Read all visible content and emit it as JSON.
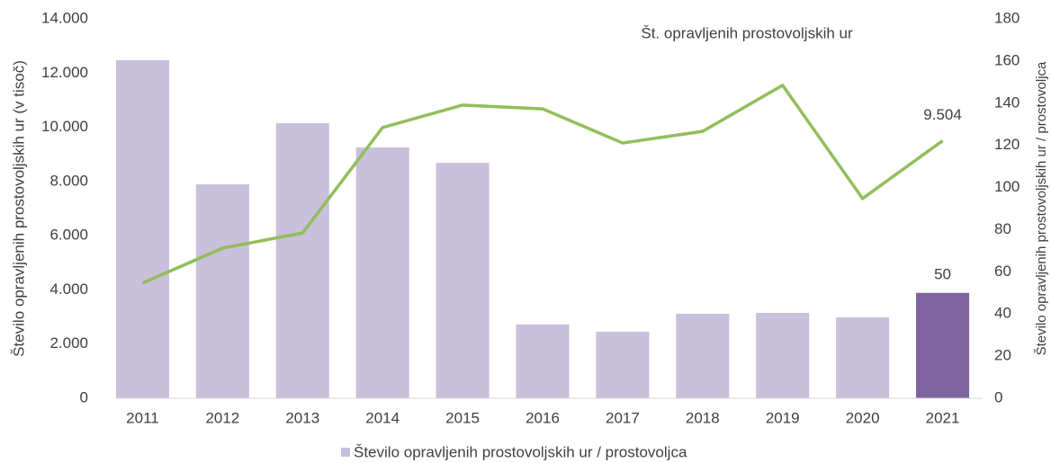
{
  "chart_data": {
    "type": "bar_line",
    "y_label": "Število opravljenih prostovoljskih ur (v tisoč)",
    "y2_label": "Število opravljenih prostovoljskih ur / prostovoljca",
    "categories": [
      "2011",
      "2012",
      "2013",
      "2014",
      "2015",
      "2016",
      "2017",
      "2018",
      "2019",
      "2020",
      "2021"
    ],
    "series": [
      {
        "name": "Število opravljenih prostovoljskih ur / prostovoljca",
        "type": "bar",
        "axis": "y2",
        "color": "#c9c0dc",
        "colors": [
          "#c9c0dc",
          "#c9c0dc",
          "#c9c0dc",
          "#c9c0dc",
          "#c9c0dc",
          "#c9c0dc",
          "#c9c0dc",
          "#c9c0dc",
          "#c9c0dc",
          "#c9c0dc",
          "#7f63a0"
        ],
        "values": [
          160.4,
          101.5,
          130.5,
          119,
          111.7,
          35,
          31.6,
          40.1,
          40.5,
          38.4,
          50
        ],
        "value_labels": [
          null,
          null,
          null,
          null,
          null,
          null,
          null,
          null,
          null,
          null,
          "50"
        ]
      },
      {
        "name": "Št. opravljenih prostovoljskih ur",
        "type": "line",
        "axis": "y",
        "color": "#93bd5a",
        "values": [
          4250,
          5540,
          6100,
          9990,
          10820,
          10680,
          9420,
          9850,
          11550,
          7370,
          9504
        ],
        "value_labels": [
          null,
          null,
          null,
          null,
          null,
          null,
          null,
          null,
          null,
          null,
          "9.504"
        ]
      }
    ],
    "ylim": [
      0,
      14000
    ],
    "yticks": [
      0,
      {
        "value": 2000,
        "label": "2.000"
      },
      {
        "value": 4000,
        "label": "4.000"
      },
      {
        "value": 6000,
        "label": "6.000"
      },
      {
        "value": 8000,
        "label": "8.000"
      },
      {
        "value": 10000,
        "label": "10.000"
      },
      {
        "value": 12000,
        "label": "12.000"
      },
      {
        "value": 14000,
        "label": "14.000"
      }
    ],
    "y2lim": [
      0,
      180
    ],
    "y2ticks": [
      0,
      20,
      40,
      60,
      80,
      100,
      120,
      140,
      160,
      180
    ],
    "grid": false,
    "legend": "bottom"
  }
}
